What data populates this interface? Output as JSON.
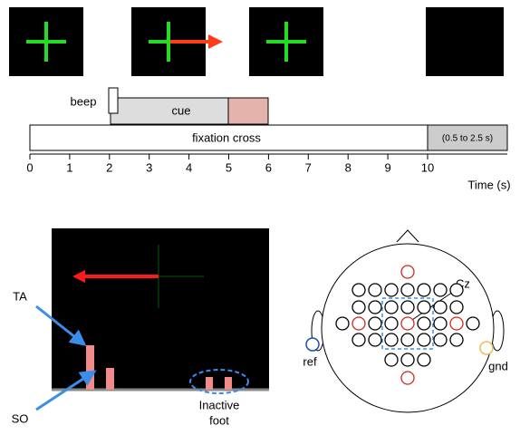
{
  "timeline": {
    "beep": "beep",
    "cue": "cue",
    "fixation": "fixation cross",
    "rest": "(0.5 to 2.5 s)",
    "axis_label": "Time (s)",
    "ticks": [
      0,
      1,
      2,
      3,
      4,
      5,
      6,
      7,
      8,
      9,
      10
    ]
  },
  "feedback": {
    "ta": "TA",
    "so": "SO",
    "inactive_1": "Inactive",
    "inactive_2": "foot"
  },
  "montage": {
    "cz": "Cz",
    "ref": "ref",
    "gnd": "gnd"
  }
}
